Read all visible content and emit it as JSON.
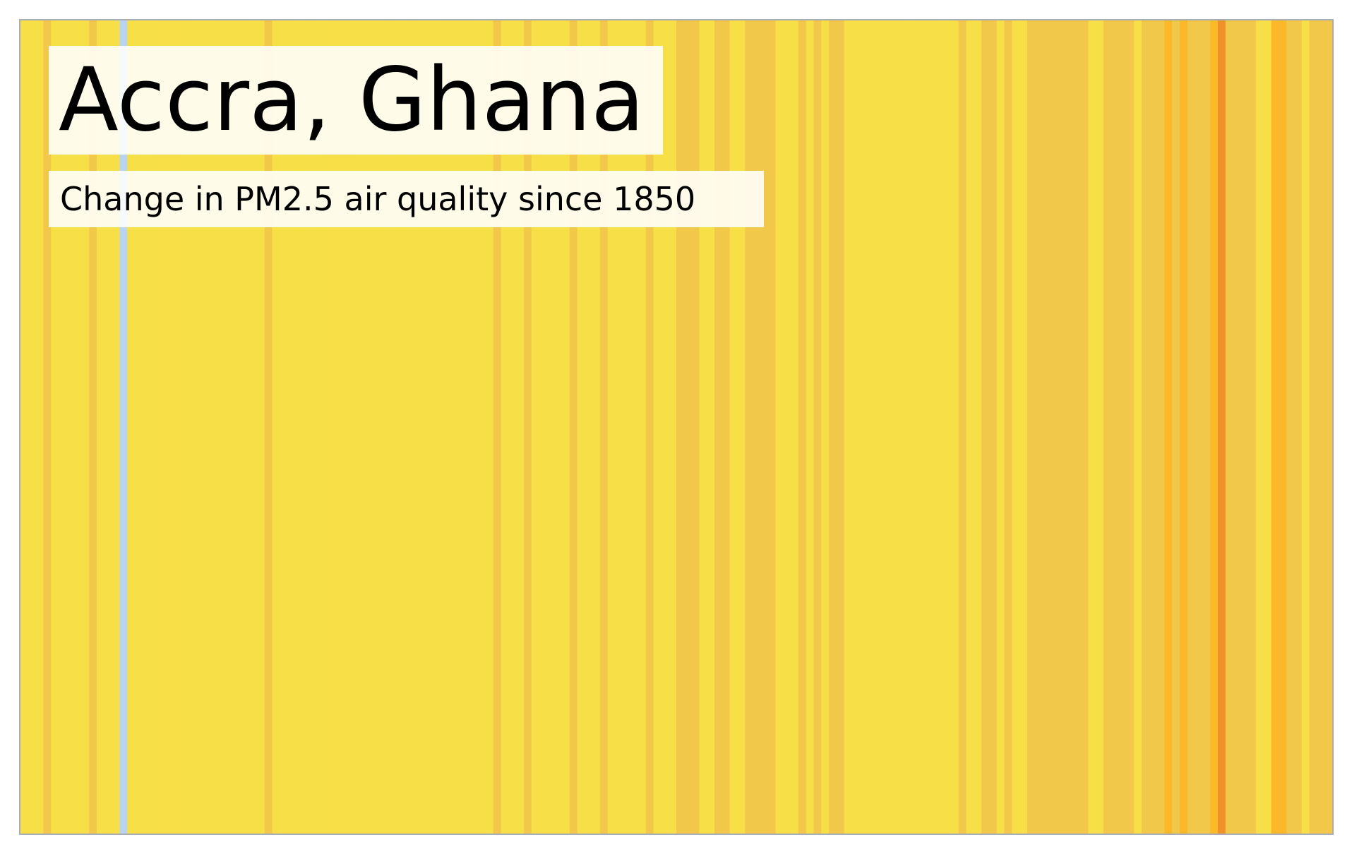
{
  "chart_data": {
    "type": "heatmap",
    "title": "Accra, Ghana",
    "subtitle": "Change in PM2.5 air quality since 1850",
    "palette": {
      "light_blue": "#b8d4ee",
      "yellow": "#f7df47",
      "gold": "#f2c84b",
      "amber": "#fbb829",
      "orange": "#f0922a"
    },
    "stripe_colors": [
      "yellow",
      "yellow",
      "yellow",
      "gold",
      "yellow",
      "yellow",
      "yellow",
      "yellow",
      "yellow",
      "gold",
      "yellow",
      "yellow",
      "yellow",
      "light_blue",
      "yellow",
      "yellow",
      "yellow",
      "yellow",
      "yellow",
      "yellow",
      "yellow",
      "yellow",
      "yellow",
      "yellow",
      "yellow",
      "yellow",
      "yellow",
      "yellow",
      "yellow",
      "yellow",
      "yellow",
      "yellow",
      "gold",
      "yellow",
      "yellow",
      "yellow",
      "yellow",
      "yellow",
      "yellow",
      "yellow",
      "yellow",
      "yellow",
      "yellow",
      "yellow",
      "yellow",
      "yellow",
      "yellow",
      "yellow",
      "yellow",
      "yellow",
      "yellow",
      "yellow",
      "yellow",
      "yellow",
      "yellow",
      "yellow",
      "yellow",
      "yellow",
      "yellow",
      "yellow",
      "yellow",
      "yellow",
      "gold",
      "yellow",
      "yellow",
      "yellow",
      "gold",
      "yellow",
      "yellow",
      "yellow",
      "yellow",
      "yellow",
      "gold",
      "yellow",
      "yellow",
      "yellow",
      "gold",
      "yellow",
      "yellow",
      "yellow",
      "yellow",
      "yellow",
      "gold",
      "yellow",
      "yellow",
      "yellow",
      "gold",
      "gold",
      "gold",
      "yellow",
      "yellow",
      "gold",
      "gold",
      "yellow",
      "yellow",
      "gold",
      "gold",
      "gold",
      "gold",
      "yellow",
      "yellow",
      "yellow",
      "gold",
      "yellow",
      "gold",
      "yellow",
      "gold",
      "gold",
      "yellow",
      "yellow",
      "yellow",
      "yellow",
      "yellow",
      "yellow",
      "yellow",
      "yellow",
      "yellow",
      "yellow",
      "yellow",
      "yellow",
      "yellow",
      "yellow",
      "yellow",
      "gold",
      "yellow",
      "yellow",
      "gold",
      "gold",
      "yellow",
      "gold",
      "yellow",
      "yellow",
      "gold",
      "gold",
      "gold",
      "gold",
      "gold",
      "gold",
      "gold",
      "gold",
      "yellow",
      "yellow",
      "gold",
      "gold",
      "gold",
      "gold",
      "yellow",
      "gold",
      "gold",
      "gold",
      "amber",
      "gold",
      "amber",
      "gold",
      "gold",
      "gold",
      "amber",
      "orange",
      "gold",
      "gold",
      "gold",
      "gold",
      "yellow",
      "yellow",
      "amber",
      "amber",
      "gold",
      "gold",
      "yellow",
      "gold",
      "gold",
      "gold"
    ]
  }
}
